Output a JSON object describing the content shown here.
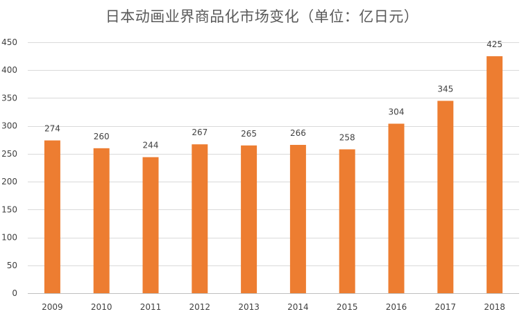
{
  "chart_data": {
    "type": "bar",
    "title": "日本动画业界商品化市场变化（单位：亿日元）",
    "xlabel": "",
    "ylabel": "",
    "categories": [
      "2009",
      "2010",
      "2011",
      "2012",
      "2013",
      "2014",
      "2015",
      "2016",
      "2017",
      "2018"
    ],
    "series": [
      {
        "values": [
          274,
          260,
          244,
          267,
          265,
          266,
          258,
          304,
          345,
          425
        ],
        "color": "#ED7D31"
      }
    ],
    "ylim": [
      0,
      450
    ],
    "yticks": [
      0,
      50,
      100,
      150,
      200,
      250,
      300,
      350,
      400,
      450
    ],
    "grid": true,
    "data_labels": true,
    "legend": "none"
  }
}
